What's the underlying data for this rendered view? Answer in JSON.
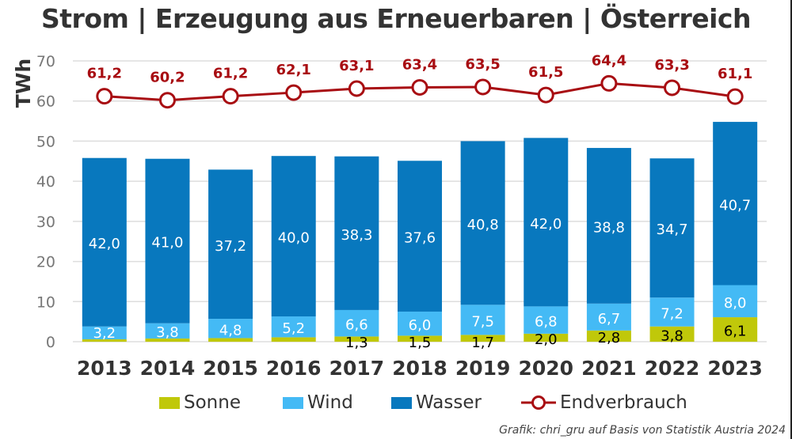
{
  "title": "Strom | Erzeugung aus Erneuerbaren | Österreich",
  "source": "Grafik: chri_gru auf Basis von Statistik Austria 2024",
  "colors": {
    "sonne": "#c0c80a",
    "wind": "#44baf5",
    "wasser": "#0878be",
    "endverbrauch": "#a80d12",
    "grid": "#dddddd",
    "axis_text": "#777777",
    "year_text": "#333333"
  },
  "legend": [
    {
      "key": "sonne",
      "label": "Sonne"
    },
    {
      "key": "wind",
      "label": "Wind"
    },
    {
      "key": "wasser",
      "label": "Wasser"
    },
    {
      "key": "endverbrauch",
      "label": "Endverbrauch"
    }
  ],
  "chart_data": {
    "type": "bar",
    "stacked": true,
    "title": "Strom | Erzeugung aus Erneuerbaren | Österreich",
    "xlabel": "",
    "ylabel": "TWh",
    "ylim": [
      0,
      70
    ],
    "yticks": [
      0,
      10,
      20,
      30,
      40,
      50,
      60,
      70
    ],
    "grid": true,
    "legend_position": "bottom",
    "categories": [
      "2013",
      "2014",
      "2015",
      "2016",
      "2017",
      "2018",
      "2019",
      "2020",
      "2021",
      "2022",
      "2023"
    ],
    "series": [
      {
        "name": "Sonne",
        "type": "bar",
        "values": [
          0.6,
          0.8,
          0.9,
          1.1,
          1.3,
          1.5,
          1.7,
          2.0,
          2.8,
          3.8,
          6.1
        ],
        "labels": [
          "",
          "",
          "",
          "",
          "1,3",
          "1,5",
          "1,7",
          "2,0",
          "2,8",
          "3,8",
          "6,1"
        ]
      },
      {
        "name": "Wind",
        "type": "bar",
        "values": [
          3.2,
          3.8,
          4.8,
          5.2,
          6.6,
          6.0,
          7.5,
          6.8,
          6.7,
          7.2,
          8.0
        ],
        "labels": [
          "3,2",
          "3,8",
          "4,8",
          "5,2",
          "6,6",
          "6,0",
          "7,5",
          "6,8",
          "6,7",
          "7,2",
          "8,0"
        ]
      },
      {
        "name": "Wasser",
        "type": "bar",
        "values": [
          42.0,
          41.0,
          37.2,
          40.0,
          38.3,
          37.6,
          40.8,
          42.0,
          38.8,
          34.7,
          40.7
        ],
        "labels": [
          "42,0",
          "41,0",
          "37,2",
          "40,0",
          "38,3",
          "37,6",
          "40,8",
          "42,0",
          "38,8",
          "34,7",
          "40,7"
        ]
      },
      {
        "name": "Endverbrauch",
        "type": "line",
        "values": [
          61.2,
          60.2,
          61.2,
          62.1,
          63.1,
          63.4,
          63.5,
          61.5,
          64.4,
          63.3,
          61.1
        ],
        "labels": [
          "61,2",
          "60,2",
          "61,2",
          "62,1",
          "63,1",
          "63,4",
          "63,5",
          "61,5",
          "64,4",
          "63,3",
          "61,1"
        ]
      }
    ]
  }
}
